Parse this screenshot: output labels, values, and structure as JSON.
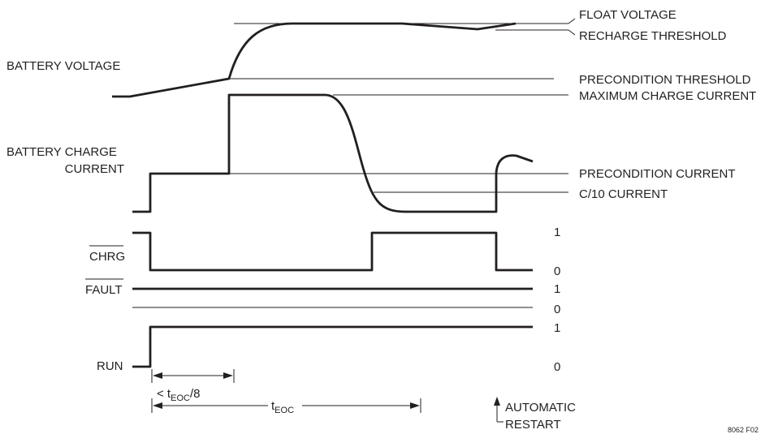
{
  "signals": {
    "battery_voltage": "BATTERY VOLTAGE",
    "battery_charge_current_line1": "BATTERY CHARGE",
    "battery_charge_current_line2": "CURRENT",
    "chrg": "CHRG",
    "fault": "FAULT",
    "run": "RUN"
  },
  "levels": {
    "float_voltage": "FLOAT VOLTAGE",
    "recharge_threshold": "RECHARGE THRESHOLD",
    "precondition_threshold": "PRECONDITION THRESHOLD",
    "maximum_charge_current": "MAXIMUM CHARGE CURRENT",
    "precondition_current": "PRECONDITION CURRENT",
    "c10_current": "C/10 CURRENT"
  },
  "logic": {
    "chrg_high": "1",
    "chrg_low": "0",
    "fault_high": "1",
    "fault_low": "0",
    "run_high": "1",
    "run_low": "0"
  },
  "timing": {
    "short_prefix": "< t",
    "short_sub": "EOC",
    "short_suffix": "/8",
    "long_t": "t",
    "long_sub": "EOC"
  },
  "annotation": {
    "restart_line1": "AUTOMATIC",
    "restart_line2": "RESTART"
  },
  "figure_id": "8062 F02"
}
